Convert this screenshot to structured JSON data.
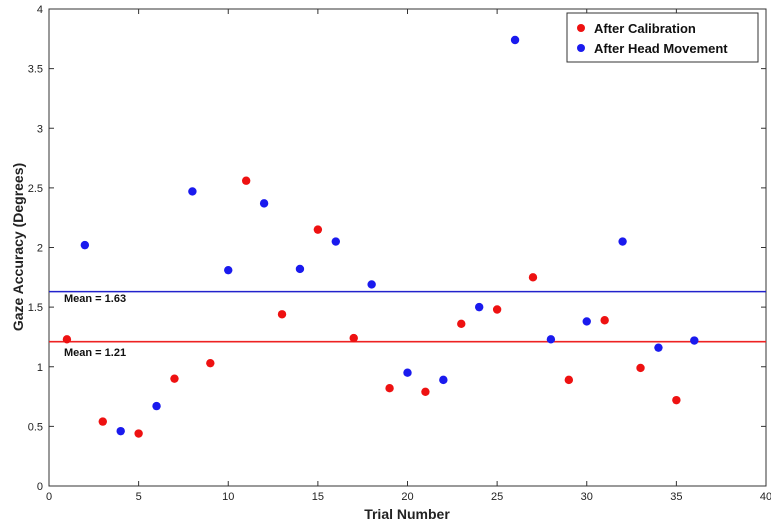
{
  "chart_data": {
    "type": "scatter",
    "xlabel": "Trial Number",
    "ylabel": "Gaze Accuracy (Degrees)",
    "xlim": [
      0,
      40
    ],
    "ylim": [
      0,
      4
    ],
    "x_ticks": [
      0,
      5,
      10,
      15,
      20,
      25,
      30,
      35,
      40
    ],
    "y_ticks": [
      0,
      0.5,
      1,
      1.5,
      2,
      2.5,
      3,
      3.5,
      4
    ],
    "x_tick_labels": [
      "0",
      "5",
      "10",
      "15",
      "20",
      "25",
      "30",
      "35",
      "40"
    ],
    "y_tick_labels": [
      "0",
      "0.5",
      "1",
      "1.5",
      "2",
      "2.5",
      "3",
      "3.5",
      "4"
    ],
    "grid": false,
    "legend_position": "top-right",
    "series": [
      {
        "name": "After Calibration",
        "color": "#ee1111",
        "points": [
          [
            1,
            1.23
          ],
          [
            3,
            0.54
          ],
          [
            5,
            0.44
          ],
          [
            7,
            0.9
          ],
          [
            9,
            1.03
          ],
          [
            11,
            2.56
          ],
          [
            13,
            1.44
          ],
          [
            15,
            2.15
          ],
          [
            17,
            1.24
          ],
          [
            19,
            0.82
          ],
          [
            21,
            0.79
          ],
          [
            23,
            1.36
          ],
          [
            25,
            1.48
          ],
          [
            27,
            1.75
          ],
          [
            29,
            0.89
          ],
          [
            31,
            1.39
          ],
          [
            33,
            0.99
          ],
          [
            35,
            0.72
          ]
        ]
      },
      {
        "name": "After Head Movement",
        "color": "#1a1aee",
        "points": [
          [
            2,
            2.02
          ],
          [
            4,
            0.46
          ],
          [
            6,
            0.67
          ],
          [
            8,
            2.47
          ],
          [
            10,
            1.81
          ],
          [
            12,
            2.37
          ],
          [
            14,
            1.82
          ],
          [
            16,
            2.05
          ],
          [
            18,
            1.69
          ],
          [
            20,
            0.95
          ],
          [
            22,
            0.89
          ],
          [
            24,
            1.5
          ],
          [
            26,
            3.74
          ],
          [
            28,
            1.23
          ],
          [
            30,
            1.38
          ],
          [
            32,
            2.05
          ],
          [
            34,
            1.16
          ],
          [
            36,
            1.22
          ]
        ]
      }
    ],
    "mean_lines": [
      {
        "label": "Mean = 1.63",
        "value": 1.63,
        "color": "#2222cc"
      },
      {
        "label": "Mean = 1.21",
        "value": 1.21,
        "color": "#ee2222"
      }
    ]
  }
}
